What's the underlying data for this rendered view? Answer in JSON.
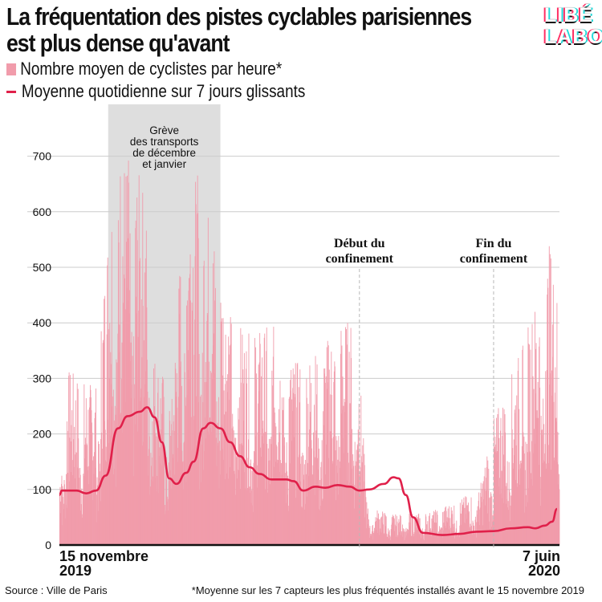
{
  "title": {
    "line1": "La fréquentation des pistes cyclables parisiennes",
    "line2": "est plus dense qu'avant"
  },
  "logo": {
    "line1": "LIBÉ",
    "line2": "LABO"
  },
  "legend": {
    "bars": "Nombre moyen de cyclistes par heure*",
    "line": "Moyenne quotidienne sur 7 jours glissants"
  },
  "x_labels": {
    "start_line1": "15 novembre",
    "start_line2": "2019",
    "end_line1": "7 juin",
    "end_line2": "2020"
  },
  "source": "Source : Ville de Paris",
  "footnote": "*Moyenne sur les 7 capteurs les plus fréquentés installés avant le 15 novembre 2019",
  "colors": {
    "bars": "#f19cab",
    "line": "#e0204a",
    "shade": "#dedede",
    "grid": "#cccccc",
    "text": "#111111"
  },
  "chart_data": {
    "type": "bar",
    "x_start": "2019-11-15",
    "x_end": "2020-06-07",
    "ylim": [
      0,
      750
    ],
    "yticks": [
      0,
      100,
      200,
      300,
      400,
      500,
      600,
      700
    ],
    "grid": true,
    "series": [
      {
        "name": "Nombre moyen de cyclistes par heure*",
        "kind": "bars",
        "envelope": [
          [
            "2019-11-15",
            140
          ],
          [
            "2019-11-18",
            320
          ],
          [
            "2019-11-24",
            300
          ],
          [
            "2019-11-30",
            290
          ],
          [
            "2019-12-05",
            600
          ],
          [
            "2019-12-08",
            730
          ],
          [
            "2019-12-15",
            700
          ],
          [
            "2019-12-20",
            640
          ],
          [
            "2019-12-24",
            350
          ],
          [
            "2019-12-31",
            270
          ],
          [
            "2020-01-03",
            500
          ],
          [
            "2020-01-06",
            690
          ],
          [
            "2020-01-12",
            660
          ],
          [
            "2020-01-18",
            560
          ],
          [
            "2020-01-24",
            420
          ],
          [
            "2020-01-31",
            380
          ],
          [
            "2020-02-10",
            400
          ],
          [
            "2020-02-20",
            330
          ],
          [
            "2020-03-01",
            360
          ],
          [
            "2020-03-10",
            410
          ],
          [
            "2020-03-16",
            400
          ],
          [
            "2020-03-20",
            70
          ],
          [
            "2020-04-01",
            55
          ],
          [
            "2020-04-15",
            60
          ],
          [
            "2020-04-25",
            80
          ],
          [
            "2020-05-05",
            100
          ],
          [
            "2020-05-11",
            230
          ],
          [
            "2020-05-20",
            330
          ],
          [
            "2020-05-30",
            470
          ],
          [
            "2020-06-03",
            550
          ],
          [
            "2020-06-07",
            430
          ]
        ]
      },
      {
        "name": "Moyenne quotidienne sur 7 jours glissants",
        "kind": "line",
        "points": [
          [
            "2019-11-15",
            90
          ],
          [
            "2019-11-16",
            98
          ],
          [
            "2019-11-22",
            98
          ],
          [
            "2019-11-26",
            93
          ],
          [
            "2019-11-30",
            98
          ],
          [
            "2019-12-04",
            125
          ],
          [
            "2019-12-09",
            210
          ],
          [
            "2019-12-13",
            232
          ],
          [
            "2019-12-18",
            240
          ],
          [
            "2019-12-21",
            248
          ],
          [
            "2019-12-24",
            230
          ],
          [
            "2019-12-27",
            185
          ],
          [
            "2019-12-30",
            120
          ],
          [
            "2020-01-02",
            110
          ],
          [
            "2020-01-06",
            130
          ],
          [
            "2020-01-09",
            150
          ],
          [
            "2020-01-13",
            210
          ],
          [
            "2020-01-16",
            220
          ],
          [
            "2020-01-20",
            210
          ],
          [
            "2020-01-24",
            185
          ],
          [
            "2020-01-28",
            160
          ],
          [
            "2020-02-01",
            140
          ],
          [
            "2020-02-05",
            128
          ],
          [
            "2020-02-10",
            118
          ],
          [
            "2020-02-16",
            118
          ],
          [
            "2020-02-19",
            115
          ],
          [
            "2020-02-23",
            98
          ],
          [
            "2020-02-28",
            105
          ],
          [
            "2020-03-03",
            103
          ],
          [
            "2020-03-08",
            108
          ],
          [
            "2020-03-13",
            105
          ],
          [
            "2020-03-17",
            98
          ],
          [
            "2020-03-21",
            100
          ],
          [
            "2020-03-27",
            110
          ],
          [
            "2020-03-31",
            122
          ],
          [
            "2020-04-02",
            120
          ],
          [
            "2020-04-05",
            90
          ],
          [
            "2020-04-08",
            50
          ],
          [
            "2020-04-12",
            22
          ],
          [
            "2020-04-20",
            18
          ],
          [
            "2020-04-27",
            20
          ],
          [
            "2020-05-04",
            24
          ],
          [
            "2020-05-11",
            25
          ],
          [
            "2020-05-18",
            30
          ],
          [
            "2020-05-25",
            32
          ],
          [
            "2020-05-28",
            30
          ],
          [
            "2020-06-01",
            35
          ],
          [
            "2020-06-04",
            42
          ],
          [
            "2020-06-06",
            65
          ]
        ]
      }
    ],
    "annotations": [
      {
        "type": "shaded_range",
        "from": "2019-12-05",
        "to": "2020-01-20",
        "label": "Grève\ndes transports\nde décembre\net janvier"
      },
      {
        "type": "vline",
        "at": "2020-03-17",
        "label": "Début du\nconfinement"
      },
      {
        "type": "vline",
        "at": "2020-05-11",
        "label": "Fin du\nconfinement"
      }
    ]
  }
}
